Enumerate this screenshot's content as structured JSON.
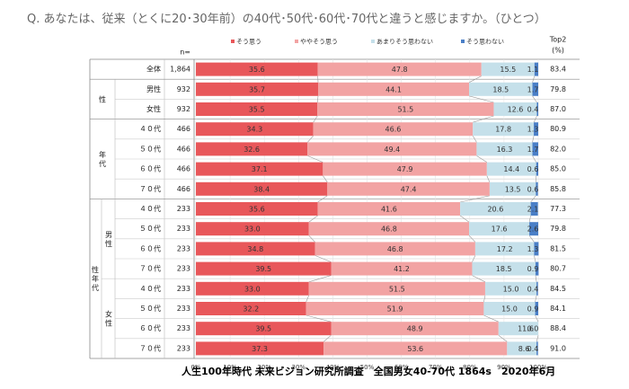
{
  "question": "Q. あなたは、従来（とくに20･30年前）の40代･50代･60代･70代と違うと感じますか。（ひとつ）",
  "footer": "人生100年時代 未来ビジョン研究所調査　全国男女40-70代 1864s　2020年6月",
  "n_header": "n=",
  "top2_header": [
    "Top2",
    "(%)"
  ],
  "legend": [
    {
      "name": "そう思う",
      "color": "#e8575a"
    },
    {
      "name": "ややそう思う",
      "color": "#f2a3a3"
    },
    {
      "name": "あまりそう思わない",
      "color": "#c5e0ea"
    },
    {
      "name": "そう思わない",
      "color": "#4a7fc7"
    }
  ],
  "groups": [
    {
      "label": "性",
      "start": 1,
      "end": 2
    },
    {
      "label": "年代",
      "start": 3,
      "end": 6
    },
    {
      "label": "性年代",
      "start": 7,
      "end": 14
    },
    {
      "label": "男性",
      "start": 7,
      "end": 10
    },
    {
      "label": "女性",
      "start": 11,
      "end": 14
    }
  ],
  "chart_data": {
    "type": "bar",
    "stacked": true,
    "orientation": "horizontal",
    "xlim": [
      0,
      100
    ],
    "x_ticks": [
      "0%",
      "10%",
      "20%",
      "30%",
      "40%",
      "50%",
      "60%",
      "70%",
      "80%",
      "90%",
      "100%"
    ],
    "series_names": [
      "そう思う",
      "ややそう思う",
      "あまりそう思わない",
      "そう思わない"
    ],
    "rows": [
      {
        "label": "全体",
        "n": "1,864",
        "values": [
          35.6,
          47.8,
          15.5,
          1.1
        ],
        "top2": "83.4"
      },
      {
        "label": "男性",
        "n": "932",
        "values": [
          35.7,
          44.1,
          18.5,
          1.7
        ],
        "top2": "79.8"
      },
      {
        "label": "女性",
        "n": "932",
        "values": [
          35.5,
          51.5,
          12.6,
          0.4
        ],
        "top2": "87.0"
      },
      {
        "label": "４０代",
        "n": "466",
        "values": [
          34.3,
          46.6,
          17.8,
          1.3
        ],
        "top2": "80.9"
      },
      {
        "label": "５０代",
        "n": "466",
        "values": [
          32.6,
          49.4,
          16.3,
          1.7
        ],
        "top2": "82.0"
      },
      {
        "label": "６０代",
        "n": "466",
        "values": [
          37.1,
          47.9,
          14.4,
          0.6
        ],
        "top2": "85.0"
      },
      {
        "label": "７０代",
        "n": "466",
        "values": [
          38.4,
          47.4,
          13.5,
          0.6
        ],
        "top2": "85.8"
      },
      {
        "label": "４０代",
        "n": "233",
        "values": [
          35.6,
          41.6,
          20.6,
          2.1
        ],
        "top2": "77.3"
      },
      {
        "label": "５０代",
        "n": "233",
        "values": [
          33.0,
          46.8,
          17.6,
          2.6
        ],
        "top2": "79.8"
      },
      {
        "label": "６０代",
        "n": "233",
        "values": [
          34.8,
          46.8,
          17.2,
          1.3
        ],
        "top2": "81.5"
      },
      {
        "label": "７０代",
        "n": "233",
        "values": [
          39.5,
          41.2,
          18.5,
          0.9
        ],
        "top2": "80.7"
      },
      {
        "label": "４０代",
        "n": "233",
        "values": [
          33.0,
          51.5,
          15.0,
          0.4
        ],
        "top2": "84.5"
      },
      {
        "label": "５０代",
        "n": "233",
        "values": [
          32.2,
          51.9,
          15.0,
          0.9
        ],
        "top2": "84.1"
      },
      {
        "label": "６０代",
        "n": "233",
        "values": [
          39.5,
          48.9,
          11.6,
          0.0
        ],
        "top2": "88.4"
      },
      {
        "label": "７０代",
        "n": "233",
        "values": [
          37.3,
          53.6,
          8.6,
          0.4
        ],
        "top2": "91.0"
      }
    ]
  }
}
